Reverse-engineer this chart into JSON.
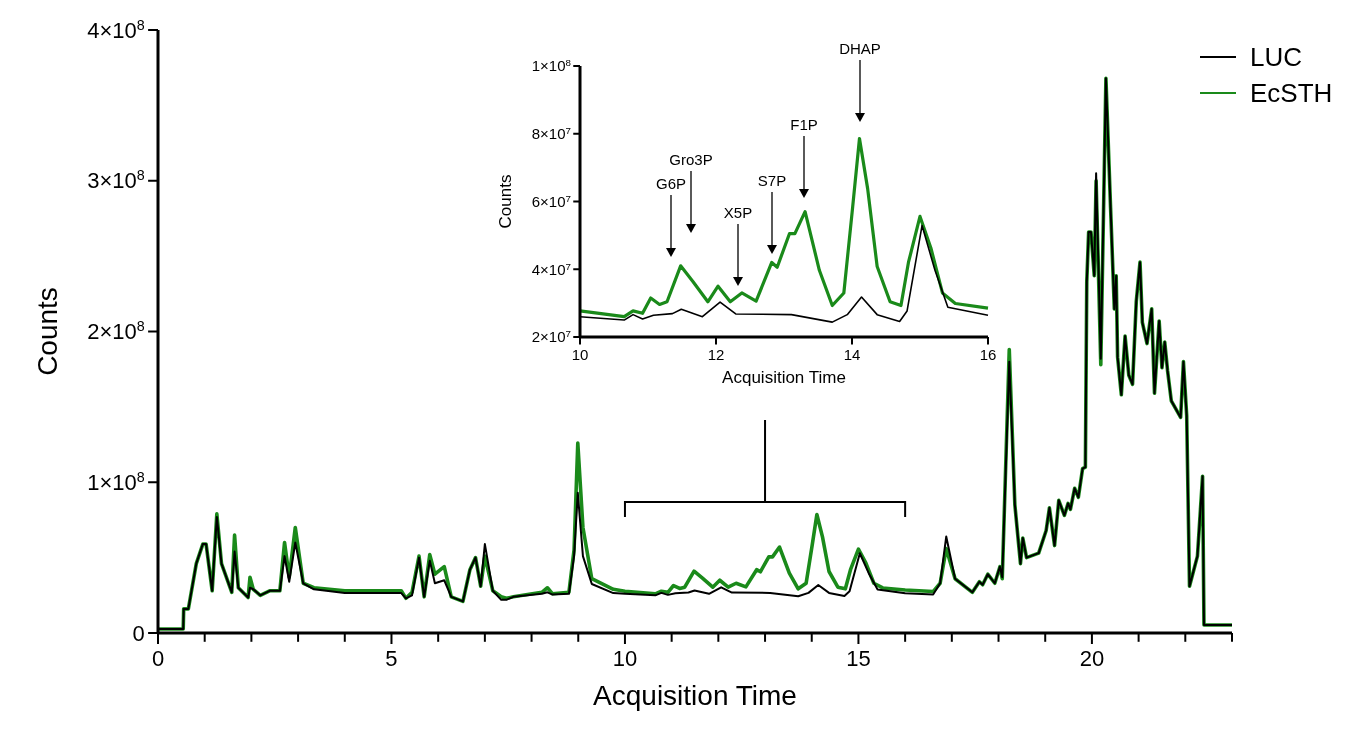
{
  "chart_data": [
    {
      "type": "line",
      "xlabel": "Acquisition Time",
      "ylabel": "Counts",
      "xlim": [
        0,
        23
      ],
      "xticks": [
        0,
        {
          "value": 1,
          "label": null
        },
        {
          "value": 2,
          "label": null
        },
        {
          "value": 3,
          "label": null
        },
        {
          "value": 4,
          "label": null
        },
        5,
        {
          "value": 6,
          "label": null
        },
        {
          "value": 7,
          "label": null
        },
        {
          "value": 8,
          "label": null
        },
        {
          "value": 9,
          "label": null
        },
        10,
        {
          "value": 11,
          "label": null
        },
        {
          "value": 12,
          "label": null
        },
        {
          "value": 13,
          "label": null
        },
        {
          "value": 14,
          "label": null
        },
        15,
        {
          "value": 16,
          "label": null
        },
        {
          "value": 17,
          "label": null
        },
        {
          "value": 18,
          "label": null
        },
        {
          "value": 19,
          "label": null
        },
        20,
        {
          "value": 21,
          "label": null
        },
        {
          "value": 22,
          "label": null
        },
        {
          "value": 23,
          "label": null
        }
      ],
      "ylim": [
        0,
        400000000
      ],
      "yticks": [
        0,
        {
          "value": 100000000,
          "label": "1×10$^{8}$"
        },
        {
          "value": 200000000,
          "label": "2×10$^{8}$"
        },
        {
          "value": 300000000,
          "label": "3×10$^{8}$"
        },
        {
          "value": 400000000,
          "label": "4×10$^{8}$"
        }
      ],
      "legend": "top right",
      "grid": false,
      "line_style": "solid",
      "marker": "none",
      "series": [
        {
          "name": "LUC",
          "color": "#000000",
          "x": [
            0,
            0.54,
            0.55,
            0.65,
            0.82,
            0.96,
            1.03,
            1.16,
            1.26,
            1.36,
            1.58,
            1.64,
            1.72,
            1.93,
            1.97,
            2.04,
            2.19,
            2.39,
            2.61,
            2.71,
            2.81,
            2.94,
            3.11,
            3.34,
            4.0,
            5.21,
            5.31,
            5.44,
            5.59,
            5.7,
            5.82,
            5.93,
            6.13,
            6.28,
            6.53,
            6.68,
            6.8,
            6.91,
            7.0,
            7.17,
            7.35,
            7.46,
            7.61,
            8.22,
            8.34,
            8.45,
            8.8,
            8.91,
            8.99,
            9.1,
            9.29,
            9.75,
            10,
            10.65,
            10.78,
            10.92,
            11.08,
            11.36,
            11.49,
            11.8,
            12.06,
            12.29,
            13.11,
            13.71,
            13.93,
            14.14,
            14.37,
            14.7,
            14.81,
            15.03,
            15.22,
            15.41,
            16.0,
            16.6,
            16.75,
            16.88,
            17.07,
            17.44,
            17.59,
            17.66,
            17.77,
            17.92,
            18.03,
            18.08,
            18.23,
            18.35,
            18.47,
            18.52,
            18.6,
            18.86,
            19.02,
            19.09,
            19.2,
            19.29,
            19.41,
            19.49,
            19.54,
            19.63,
            19.71,
            19.8,
            19.86,
            19.89,
            19.93,
            19.98,
            20.05,
            20.09,
            20.19,
            20.3,
            20.4,
            20.48,
            20.52,
            20.55,
            20.63,
            20.71,
            20.79,
            20.87,
            20.95,
            21.03,
            21.08,
            21.18,
            21.28,
            21.34,
            21.44,
            21.5,
            21.56,
            21.62,
            21.7,
            21.9,
            21.96,
            22.03,
            22.09,
            22.26,
            22.37,
            22.4,
            23.0
          ],
          "values": [
            2700000.0,
            2700000.0,
            16000000.0,
            16000000.0,
            46000000.0,
            59000000.0,
            59000000.0,
            28000000.0,
            77000000.0,
            46000000.0,
            27000000.0,
            54000000.0,
            30000000.0,
            23500000.0,
            30000000.0,
            29000000.0,
            25000000.0,
            28000000.0,
            28000000.0,
            51000000.0,
            34000000.0,
            60000000.0,
            33000000.0,
            29000000.0,
            26500000.0,
            26500000.0,
            23000000.0,
            25000000.0,
            50000000.0,
            24000000.0,
            48000000.0,
            33000000.0,
            35000000.0,
            24000000.0,
            21000000.0,
            42000000.0,
            50000000.0,
            31000000.0,
            59000000.0,
            28000000.0,
            22000000.0,
            22000000.0,
            24000000.0,
            26000000.0,
            27000000.0,
            25500000.0,
            26000000.0,
            51000000.0,
            93000000.0,
            51000000.0,
            32500000.0,
            26500000.0,
            26000000.0,
            25000000.0,
            26600000.0,
            25300000.0,
            26400000.0,
            26900000.0,
            28200000.0,
            26000000.0,
            30300000.0,
            26800000.0,
            26600000.0,
            24400000.0,
            26600000.0,
            31800000.0,
            26600000.0,
            24600000.0,
            27700000.0,
            52900000.0,
            39700000.0,
            28800000.0,
            26400000.0,
            25500000.0,
            33000000.0,
            64000000.0,
            36000000.0,
            27000000.0,
            34000000.0,
            32000000.0,
            39000000.0,
            33000000.0,
            44000000.0,
            37000000.0,
            180000000.0,
            85000000.0,
            46000000.0,
            63000000.0,
            50000000.0,
            53000000.0,
            68000000.0,
            83000000.0,
            58000000.0,
            88000000.0,
            78000000.0,
            86000000.0,
            82000000.0,
            96000000.0,
            90000000.0,
            109000000.0,
            110000000.0,
            233000000.0,
            266000000.0,
            266000000.0,
            237000000.0,
            305000000.0,
            182000000.0,
            368000000.0,
            282000000.0,
            215000000.0,
            237000000.0,
            183000000.0,
            158000000.0,
            197000000.0,
            171000000.0,
            165000000.0,
            220000000.0,
            246000000.0,
            206000000.0,
            192000000.0,
            215000000.0,
            159000000.0,
            207000000.0,
            176000000.0,
            193000000.0,
            174000000.0,
            154000000.0,
            143000000.0,
            180000000.0,
            144000000.0,
            31000000.0,
            51000000.0,
            104000000.0,
            5300000.0,
            5300000.0
          ]
        },
        {
          "name": "EcSTH",
          "color": "#1a8a1a",
          "x": [
            0,
            0.54,
            0.55,
            0.65,
            0.82,
            0.96,
            1.03,
            1.16,
            1.26,
            1.36,
            1.58,
            1.64,
            1.72,
            1.93,
            1.97,
            2.04,
            2.19,
            2.39,
            2.61,
            2.71,
            2.81,
            2.94,
            3.11,
            3.34,
            4.0,
            5.21,
            5.31,
            5.44,
            5.59,
            5.7,
            5.82,
            5.93,
            6.13,
            6.28,
            6.53,
            6.68,
            6.8,
            6.91,
            7.0,
            7.17,
            7.35,
            7.46,
            7.61,
            8.22,
            8.34,
            8.45,
            8.8,
            8.91,
            8.99,
            9.1,
            9.29,
            9.75,
            10,
            10.65,
            10.78,
            10.92,
            11.04,
            11.17,
            11.28,
            11.48,
            11.66,
            11.88,
            12.03,
            12.21,
            12.38,
            12.59,
            12.82,
            12.9,
            13.08,
            13.16,
            13.31,
            13.52,
            13.71,
            13.88,
            14.01,
            14.11,
            14.23,
            14.37,
            14.56,
            14.72,
            14.83,
            15.0,
            15.16,
            15.33,
            15.52,
            16.0,
            16.6,
            16.75,
            16.88,
            17.07,
            17.44,
            17.59,
            17.66,
            17.77,
            17.92,
            18.03,
            18.08,
            18.23,
            18.35,
            18.47,
            18.52,
            18.6,
            18.86,
            19.02,
            19.09,
            19.2,
            19.29,
            19.41,
            19.49,
            19.54,
            19.63,
            19.71,
            19.8,
            19.86,
            19.89,
            19.93,
            19.98,
            20.05,
            20.09,
            20.19,
            20.3,
            20.4,
            20.48,
            20.52,
            20.55,
            20.63,
            20.71,
            20.79,
            20.87,
            20.95,
            21.03,
            21.08,
            21.18,
            21.28,
            21.34,
            21.44,
            21.5,
            21.56,
            21.62,
            21.7,
            21.9,
            21.96,
            22.03,
            22.09,
            22.26,
            22.37,
            22.4,
            23.0
          ],
          "values": [
            2700000.0,
            2700000.0,
            16000000.0,
            16000000.0,
            46000000.0,
            59000000.0,
            59000000.0,
            28000000.0,
            79000000.0,
            46000000.0,
            27000000.0,
            65000000.0,
            30000000.0,
            23500000.0,
            37000000.0,
            29000000.0,
            25000000.0,
            28000000.0,
            28000000.0,
            60000000.0,
            37000000.0,
            70000000.0,
            33000000.0,
            30000000.0,
            28000000.0,
            28000000.0,
            23000000.0,
            27000000.0,
            51000000.0,
            24000000.0,
            52000000.0,
            39000000.0,
            44000000.0,
            24000000.0,
            21000000.0,
            42000000.0,
            50000000.0,
            31000000.0,
            51000000.0,
            28000000.0,
            24000000.0,
            23000000.0,
            24000000.0,
            27000000.0,
            30000000.0,
            26000000.0,
            27000000.0,
            55000000.0,
            126000000.0,
            70000000.0,
            36000000.0,
            29000000.0,
            27700000.0,
            26000000.0,
            27700000.0,
            27000000.0,
            31500000.0,
            29600000.0,
            30400000.0,
            41000000.0,
            36400000.0,
            30400000.0,
            35000000.0,
            30400000.0,
            33000000.0,
            30600000.0,
            42000000.0,
            40600000.0,
            50500000.0,
            50500000.0,
            57000000.0,
            39700000.0,
            29300000.0,
            33000000.0,
            58400000.0,
            78600000.0,
            63800000.0,
            40800000.0,
            30400000.0,
            29300000.0,
            42000000.0,
            55600000.0,
            46300000.0,
            33000000.0,
            29900000.0,
            28500000.0,
            27500000.0,
            33000000.0,
            56000000.0,
            36000000.0,
            27000000.0,
            34000000.0,
            32000000.0,
            39000000.0,
            33000000.0,
            44000000.0,
            36000000.0,
            188000000.0,
            85000000.0,
            46000000.0,
            63000000.0,
            50000000.0,
            53000000.0,
            68000000.0,
            83000000.0,
            58000000.0,
            88000000.0,
            78000000.0,
            86000000.0,
            82000000.0,
            96000000.0,
            90000000.0,
            109000000.0,
            110000000.0,
            233000000.0,
            266000000.0,
            266000000.0,
            237000000.0,
            300000000.0,
            178000000.0,
            368000000.0,
            282000000.0,
            215000000.0,
            237000000.0,
            183000000.0,
            158000000.0,
            197000000.0,
            171000000.0,
            165000000.0,
            220000000.0,
            246000000.0,
            206000000.0,
            192000000.0,
            215000000.0,
            159000000.0,
            207000000.0,
            176000000.0,
            193000000.0,
            174000000.0,
            154000000.0,
            143000000.0,
            180000000.0,
            144000000.0,
            31000000.0,
            51000000.0,
            104000000.0,
            5300000.0,
            5300000.0
          ]
        }
      ]
    },
    {
      "type": "line",
      "xlabel": "Acquisition Time",
      "ylabel": "Counts",
      "xlim": [
        10,
        16
      ],
      "xticks": [
        10,
        12,
        14,
        16
      ],
      "ylim": [
        20000000,
        100000000
      ],
      "yticks": [
        {
          "value": 20000000,
          "label": "2×10$^{7}$"
        },
        {
          "value": 40000000,
          "label": "4×10$^{7}$"
        },
        {
          "value": 60000000,
          "label": "6×10$^{7}$"
        },
        {
          "value": 80000000,
          "label": "8×10$^{7}$"
        },
        {
          "value": 100000000,
          "label": "1×10$^{8}$"
        }
      ],
      "grid": false,
      "line_style": "solid",
      "marker": "none",
      "annotations": [
        "G6P",
        "Gro3P",
        "X5P",
        "S7P",
        "F1P",
        "DHAP"
      ],
      "series": [
        {
          "color": "#000000",
          "x": [
            10,
            10.65,
            10.78,
            10.92,
            11.08,
            11.36,
            11.49,
            11.8,
            12.06,
            12.29,
            13.11,
            13.71,
            13.93,
            14.14,
            14.37,
            14.7,
            14.81,
            15.03,
            15.22,
            15.41,
            16.0
          ],
          "values": [
            26000000.0,
            25000000.0,
            26600000.0,
            25300000.0,
            26400000.0,
            26900000.0,
            28200000.0,
            26000000.0,
            30300000.0,
            26800000.0,
            26600000.0,
            24400000.0,
            26600000.0,
            31800000.0,
            26600000.0,
            24600000.0,
            27700000.0,
            52900000.0,
            39700000.0,
            28800000.0,
            26400000.0
          ]
        },
        {
          "color": "#1a8a1a",
          "x": [
            10,
            10.65,
            10.78,
            10.92,
            11.04,
            11.17,
            11.28,
            11.48,
            11.66,
            11.88,
            12.03,
            12.21,
            12.38,
            12.59,
            12.82,
            12.9,
            13.08,
            13.16,
            13.31,
            13.52,
            13.71,
            13.88,
            14.01,
            14.11,
            14.23,
            14.37,
            14.56,
            14.72,
            14.83,
            15.0,
            15.16,
            15.33,
            15.52,
            16.0
          ],
          "values": [
            27700000.0,
            26000000.0,
            27700000.0,
            27000000.0,
            31500000.0,
            29600000.0,
            30400000.0,
            41000000.0,
            36400000.0,
            30400000.0,
            35000000.0,
            30400000.0,
            33000000.0,
            30600000.0,
            42000000.0,
            40600000.0,
            50500000.0,
            50500000.0,
            57000000.0,
            39700000.0,
            29300000.0,
            33000000.0,
            58400000.0,
            78600000.0,
            63800000.0,
            40800000.0,
            30400000.0,
            29300000.0,
            42000000.0,
            55600000.0,
            46300000.0,
            33000000.0,
            29900000.0,
            28500000.0
          ]
        }
      ]
    }
  ]
}
